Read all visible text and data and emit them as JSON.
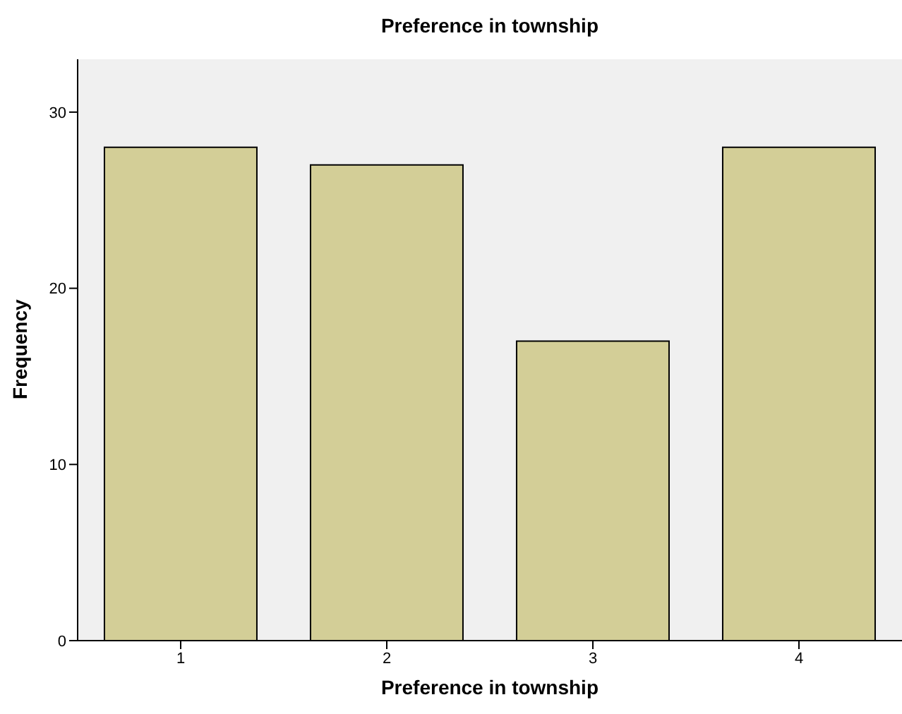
{
  "chart_data": {
    "type": "bar",
    "title": "Preference in township",
    "xlabel": "Preference in township",
    "ylabel": "Frequency",
    "categories": [
      "1",
      "2",
      "3",
      "4"
    ],
    "values": [
      28,
      27,
      17,
      28
    ],
    "color": "#d3ce97",
    "ylim": [
      0,
      33
    ],
    "yticks": [
      0,
      10,
      20,
      30
    ],
    "grid": false,
    "legend": false
  }
}
